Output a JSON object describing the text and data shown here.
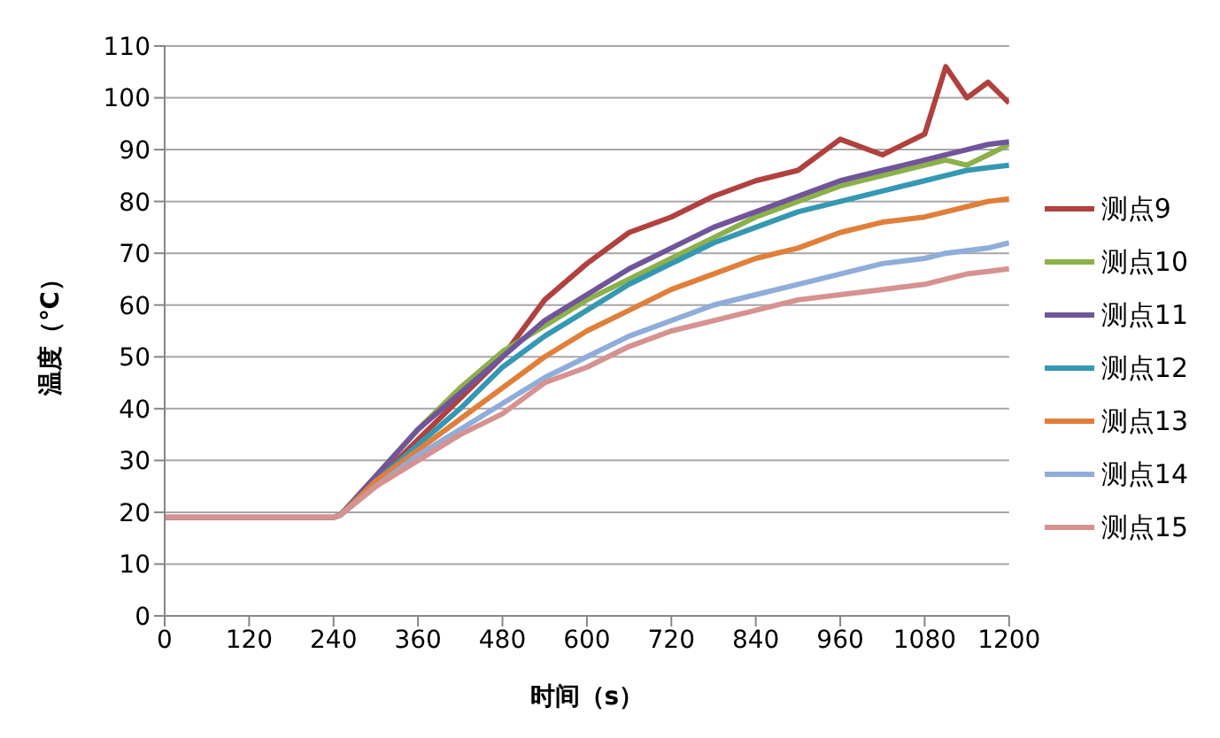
{
  "chart_data": {
    "type": "line",
    "xlabel": "时间（s）",
    "ylabel": "温度（℃）",
    "x": [
      0,
      120,
      240,
      250,
      300,
      360,
      420,
      480,
      540,
      600,
      660,
      720,
      780,
      840,
      900,
      960,
      1020,
      1080,
      1110,
      1140,
      1170,
      1200
    ],
    "xlim": [
      0,
      1200
    ],
    "xticks": [
      0,
      120,
      240,
      360,
      480,
      600,
      720,
      840,
      960,
      1080,
      1200
    ],
    "ylim": [
      0,
      110
    ],
    "yticks": [
      0,
      10,
      20,
      30,
      40,
      50,
      60,
      70,
      80,
      90,
      100,
      110
    ],
    "grid": "y",
    "legend": "right",
    "marker": "none",
    "line_style": "solid",
    "series": [
      {
        "name": "测点9",
        "color": "#b0413e",
        "values": [
          19,
          19,
          19,
          19.5,
          26,
          34,
          42,
          50,
          61,
          68,
          74,
          77,
          81,
          84,
          86,
          92,
          89,
          93,
          106,
          100,
          103,
          99
        ]
      },
      {
        "name": "测点10",
        "color": "#8cb04a",
        "values": [
          null,
          null,
          null,
          19.5,
          27,
          36,
          44,
          51,
          56,
          61,
          65,
          69,
          73,
          77,
          80,
          83,
          85,
          87,
          88,
          87,
          89,
          91
        ]
      },
      {
        "name": "测点11",
        "color": "#71559a",
        "values": [
          19,
          19,
          19,
          19.5,
          27,
          36,
          43,
          50,
          57,
          62,
          67,
          71,
          75,
          78,
          81,
          84,
          86,
          88,
          89,
          90,
          91,
          91.5
        ]
      },
      {
        "name": "测点12",
        "color": "#3598b3",
        "values": [
          null,
          null,
          null,
          19.5,
          26,
          33,
          40,
          48,
          54,
          59,
          64,
          68,
          72,
          75,
          78,
          80,
          82,
          84,
          85,
          86,
          86.5,
          87
        ]
      },
      {
        "name": "测点13",
        "color": "#e07f3a",
        "values": [
          null,
          null,
          null,
          19.5,
          26,
          32,
          38,
          44,
          50,
          55,
          59,
          63,
          66,
          69,
          71,
          74,
          76,
          77,
          78,
          79,
          80,
          80.5
        ]
      },
      {
        "name": "测点14",
        "color": "#8fadd8",
        "values": [
          null,
          null,
          null,
          19.5,
          25,
          31,
          36,
          41,
          46,
          50,
          54,
          57,
          60,
          62,
          64,
          66,
          68,
          69,
          70,
          70.5,
          71,
          72
        ]
      },
      {
        "name": "测点15",
        "color": "#d69291",
        "values": [
          19,
          19,
          19,
          19.5,
          25,
          30,
          35,
          39,
          45,
          48,
          52,
          55,
          57,
          59,
          61,
          62,
          63,
          64,
          65,
          66,
          66.5,
          67
        ]
      }
    ]
  }
}
